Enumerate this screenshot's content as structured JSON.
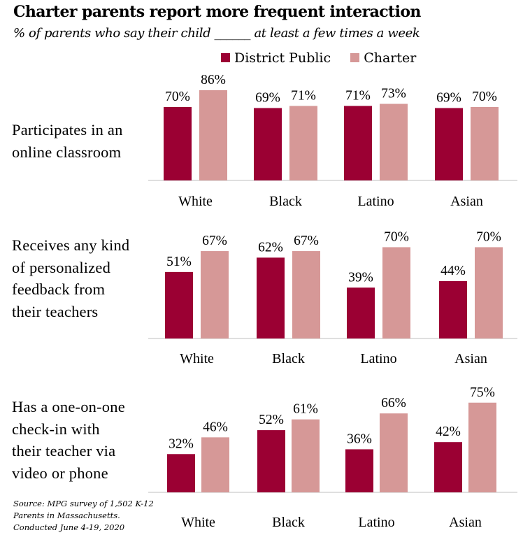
{
  "title": "Charter parents report more frequent interaction",
  "subtitle": "% of parents who say their child ______ at least a few times a week",
  "source": [
    "Source: MPG survey of 1,502 K-12",
    "Parents in Massachusetts.",
    "Conducted June 4-19, 2020"
  ],
  "colors": {
    "district": "#9b0033",
    "charter": "#d69897",
    "axis": "#bfbfbf"
  },
  "chart_data": [
    {
      "type": "bar",
      "label": [
        "Participates in an",
        "online classroom"
      ],
      "categories": [
        "White",
        "Black",
        "Latino",
        "Asian"
      ],
      "series": [
        {
          "name": "District Public",
          "values": [
            70,
            69,
            71,
            69
          ],
          "labels": [
            "70%",
            "69%",
            "71%",
            "69%"
          ]
        },
        {
          "name": "Charter",
          "values": [
            86,
            71,
            73,
            70
          ],
          "labels": [
            "86%",
            "71%",
            "73%",
            "70%"
          ]
        }
      ],
      "ylim": [
        0,
        100
      ],
      "legend": "top"
    },
    {
      "type": "bar",
      "label": [
        "Receives any kind",
        "of personalized",
        "feedback from",
        "their teachers"
      ],
      "categories": [
        "White",
        "Black",
        "Latino",
        "Asian"
      ],
      "series": [
        {
          "name": "District Public",
          "values": [
            51,
            62,
            39,
            44
          ],
          "labels": [
            "51%",
            "62%",
            "39%",
            "44%"
          ]
        },
        {
          "name": "Charter",
          "values": [
            67,
            67,
            70,
            70
          ],
          "labels": [
            "67%",
            "67%",
            "70%",
            "70%"
          ]
        }
      ],
      "ylim": [
        0,
        100
      ]
    },
    {
      "type": "bar",
      "label": [
        "Has a one-on-one",
        "check-in with",
        "their teacher via",
        "video or phone"
      ],
      "categories": [
        "White",
        "Black",
        "Latino",
        "Asian"
      ],
      "series": [
        {
          "name": "District Public",
          "values": [
            32,
            52,
            36,
            42
          ],
          "labels": [
            "32%",
            "52%",
            "36%",
            "42%"
          ]
        },
        {
          "name": "Charter",
          "values": [
            46,
            61,
            66,
            75
          ],
          "labels": [
            "46%",
            "61%",
            "66%",
            "75%"
          ]
        }
      ],
      "ylim": [
        0,
        100
      ]
    }
  ]
}
